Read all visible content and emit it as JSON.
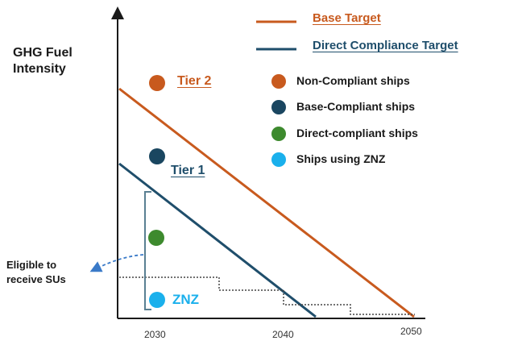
{
  "y_axis_label": "GHG Fuel\nIntensity",
  "x_ticks": [
    "2030",
    "2040",
    "2050"
  ],
  "legend": {
    "base_target": "Base Target",
    "direct_target": "Direct Compliance Target",
    "non_compliant": "Non-Compliant ships",
    "base_compliant": "Base-Compliant ships",
    "direct_compliant": "Direct-compliant ships",
    "znz": "Ships using ZNZ"
  },
  "labels": {
    "tier2": "Tier 2",
    "tier1": "Tier 1",
    "znz": "ZNZ",
    "eligible": "Eligible to\nreceive SUs"
  },
  "colors": {
    "base_target": "#c85a1e",
    "direct_target": "#1f4e6b",
    "non_compliant": "#c85a1e",
    "base_compliant": "#1a4660",
    "direct_compliant": "#3d8a2e",
    "znz": "#1ab0ec",
    "eligible_arrow": "#3a7ac8"
  }
}
